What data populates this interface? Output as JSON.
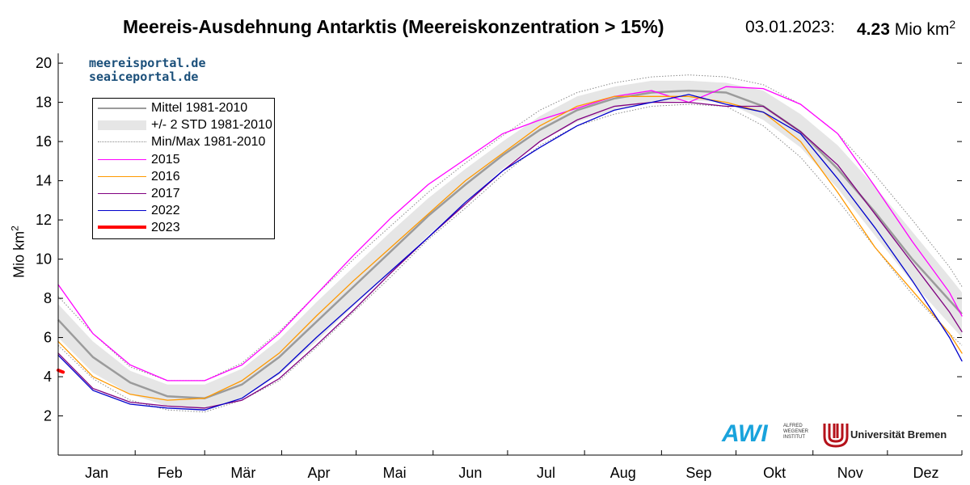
{
  "header": {
    "title": "Meereis-Ausdehnung Antarktis (Meereiskonzentration > 15%)",
    "date": "03.01.2023:",
    "value": "4.23",
    "unit": "Mio km",
    "unit_exp": "2"
  },
  "portal": {
    "line1": "meereisportal.de",
    "line2": "seaiceportal.de"
  },
  "logos": {
    "awi": "AWI",
    "awi_sub1": "ALFRED",
    "awi_sub2": "WEGENER",
    "awi_sub3": "INSTITUT",
    "uni": "Universität Bremen"
  },
  "colors": {
    "mean": "#9b9b9b",
    "std": "#e6e6e6",
    "minmax": "#8a8a8a",
    "s2015": "#ff00ff",
    "s2016": "#ff9900",
    "s2017": "#800080",
    "s2022": "#0000cc",
    "s2023": "#ff0000"
  },
  "chart_data": {
    "type": "line",
    "title": "Meereis-Ausdehnung Antarktis (Meereiskonzentration > 15%)",
    "xlabel": "",
    "ylabel": "Mio km",
    "ylabel_exp": "2",
    "ylim": [
      0,
      20.5
    ],
    "yticks": [
      2,
      4,
      6,
      8,
      10,
      12,
      14,
      16,
      18,
      20
    ],
    "xticks": [
      "Jan",
      "Feb",
      "Mär",
      "Apr",
      "Mai",
      "Jun",
      "Jul",
      "Aug",
      "Sep",
      "Okt",
      "Nov",
      "Dez"
    ],
    "x_unit": "day of year",
    "legend_position": "top-left",
    "grid": false,
    "legend": [
      {
        "key": "mean",
        "label": "Mittel 1981-2010"
      },
      {
        "key": "std",
        "label": "+/- 2 STD 1981-2010"
      },
      {
        "key": "minmax",
        "label": "Min/Max 1981-2010"
      },
      {
        "key": "s2015",
        "label": "2015"
      },
      {
        "key": "s2016",
        "label": "2016"
      },
      {
        "key": "s2017",
        "label": "2017"
      },
      {
        "key": "s2022",
        "label": "2022"
      },
      {
        "key": "s2023",
        "label": "2023"
      }
    ],
    "mean": {
      "x": [
        1,
        15,
        30,
        45,
        60,
        75,
        90,
        105,
        120,
        135,
        150,
        165,
        180,
        195,
        210,
        225,
        240,
        255,
        270,
        285,
        300,
        315,
        330,
        345,
        360,
        365
      ],
      "y": [
        6.9,
        5.0,
        3.7,
        3.0,
        2.9,
        3.6,
        5.0,
        6.8,
        8.6,
        10.4,
        12.2,
        13.8,
        15.3,
        16.6,
        17.6,
        18.2,
        18.5,
        18.6,
        18.5,
        17.8,
        16.5,
        14.6,
        12.4,
        10.0,
        7.9,
        7.2
      ]
    },
    "std_upper": {
      "x": [
        1,
        15,
        30,
        45,
        60,
        75,
        90,
        105,
        120,
        135,
        150,
        165,
        180,
        195,
        210,
        225,
        240,
        255,
        270,
        285,
        300,
        315,
        330,
        345,
        360,
        365
      ],
      "y": [
        7.7,
        5.8,
        4.3,
        3.6,
        3.6,
        4.4,
        5.9,
        7.8,
        9.6,
        11.4,
        13.1,
        14.6,
        16.0,
        17.3,
        18.3,
        18.8,
        19.1,
        19.1,
        19.0,
        18.6,
        17.4,
        15.8,
        13.7,
        11.4,
        9.1,
        8.3
      ]
    },
    "std_lower": {
      "x": [
        1,
        15,
        30,
        45,
        60,
        75,
        90,
        105,
        120,
        135,
        150,
        165,
        180,
        195,
        210,
        225,
        240,
        255,
        270,
        285,
        300,
        315,
        330,
        345,
        360,
        365
      ],
      "y": [
        6.0,
        4.2,
        3.1,
        2.5,
        2.3,
        2.9,
        4.1,
        5.8,
        7.6,
        9.4,
        11.2,
        12.9,
        14.6,
        16.0,
        17.0,
        17.6,
        18.0,
        18.1,
        18.0,
        17.1,
        15.7,
        13.6,
        11.2,
        8.8,
        6.7,
        6.0
      ]
    },
    "min": {
      "x": [
        1,
        15,
        30,
        45,
        60,
        75,
        90,
        105,
        120,
        135,
        150,
        165,
        180,
        195,
        210,
        225,
        240,
        255,
        270,
        285,
        300,
        315,
        330,
        345,
        360,
        365
      ],
      "y": [
        5.6,
        3.9,
        2.8,
        2.3,
        2.2,
        2.8,
        3.8,
        5.5,
        7.3,
        9.1,
        11.0,
        12.6,
        14.3,
        15.8,
        16.8,
        17.4,
        17.8,
        17.9,
        17.8,
        16.8,
        15.2,
        13.0,
        10.6,
        8.2,
        6.2,
        5.6
      ]
    },
    "max": {
      "x": [
        1,
        15,
        30,
        45,
        60,
        75,
        90,
        105,
        120,
        135,
        150,
        165,
        180,
        195,
        210,
        225,
        240,
        255,
        270,
        285,
        300,
        315,
        330,
        345,
        360,
        365
      ],
      "y": [
        8.1,
        6.2,
        4.5,
        3.8,
        3.8,
        4.7,
        6.3,
        8.2,
        10.0,
        11.7,
        13.4,
        14.9,
        16.3,
        17.6,
        18.5,
        19.0,
        19.3,
        19.4,
        19.3,
        18.9,
        17.9,
        16.4,
        14.3,
        12.0,
        9.6,
        8.6
      ]
    },
    "series": [
      {
        "name": "2015",
        "key": "s2015",
        "x": [
          1,
          15,
          30,
          45,
          60,
          75,
          90,
          105,
          120,
          135,
          150,
          165,
          180,
          195,
          210,
          225,
          240,
          255,
          270,
          285,
          300,
          315,
          330,
          345,
          360,
          365
        ],
        "y": [
          8.7,
          6.2,
          4.6,
          3.8,
          3.8,
          4.6,
          6.2,
          8.2,
          10.2,
          12.1,
          13.8,
          15.1,
          16.4,
          17.1,
          17.7,
          18.3,
          18.6,
          18.0,
          18.8,
          18.7,
          17.9,
          16.4,
          13.7,
          10.9,
          8.3,
          7.1
        ]
      },
      {
        "name": "2016",
        "key": "s2016",
        "x": [
          1,
          15,
          30,
          45,
          60,
          75,
          90,
          105,
          120,
          135,
          150,
          165,
          180,
          195,
          210,
          225,
          240,
          255,
          270,
          285,
          300,
          315,
          330,
          345,
          360,
          365
        ],
        "y": [
          5.8,
          4.0,
          3.1,
          2.8,
          2.9,
          3.8,
          5.2,
          7.1,
          8.9,
          10.6,
          12.3,
          14.0,
          15.4,
          16.8,
          17.8,
          18.3,
          18.3,
          18.3,
          18.0,
          17.5,
          16.0,
          13.4,
          10.6,
          8.4,
          6.2,
          5.2
        ]
      },
      {
        "name": "2017",
        "key": "s2017",
        "x": [
          1,
          15,
          30,
          45,
          60,
          75,
          90,
          105,
          120,
          135,
          150,
          165,
          180,
          195,
          210,
          225,
          240,
          255,
          270,
          285,
          300,
          315,
          330,
          345,
          360,
          365
        ],
        "y": [
          5.2,
          3.4,
          2.7,
          2.5,
          2.4,
          2.8,
          3.9,
          5.6,
          7.4,
          9.3,
          11.1,
          12.8,
          14.5,
          16.0,
          17.1,
          17.8,
          18.0,
          18.0,
          17.8,
          17.8,
          16.5,
          14.8,
          12.3,
          9.8,
          7.3,
          6.3
        ]
      },
      {
        "name": "2022",
        "key": "s2022",
        "x": [
          1,
          15,
          30,
          45,
          60,
          75,
          90,
          105,
          120,
          135,
          150,
          165,
          180,
          195,
          210,
          225,
          240,
          255,
          270,
          285,
          300,
          315,
          330,
          345,
          360,
          365
        ],
        "y": [
          5.1,
          3.3,
          2.6,
          2.4,
          2.3,
          2.9,
          4.2,
          6.0,
          7.7,
          9.4,
          11.1,
          12.9,
          14.5,
          15.7,
          16.8,
          17.6,
          18.0,
          18.4,
          17.9,
          17.5,
          16.4,
          14.1,
          11.6,
          8.9,
          6.0,
          4.8
        ]
      },
      {
        "name": "2023",
        "key": "s2023",
        "x": [
          1,
          2,
          3
        ],
        "y": [
          4.33,
          4.28,
          4.23
        ]
      }
    ]
  }
}
